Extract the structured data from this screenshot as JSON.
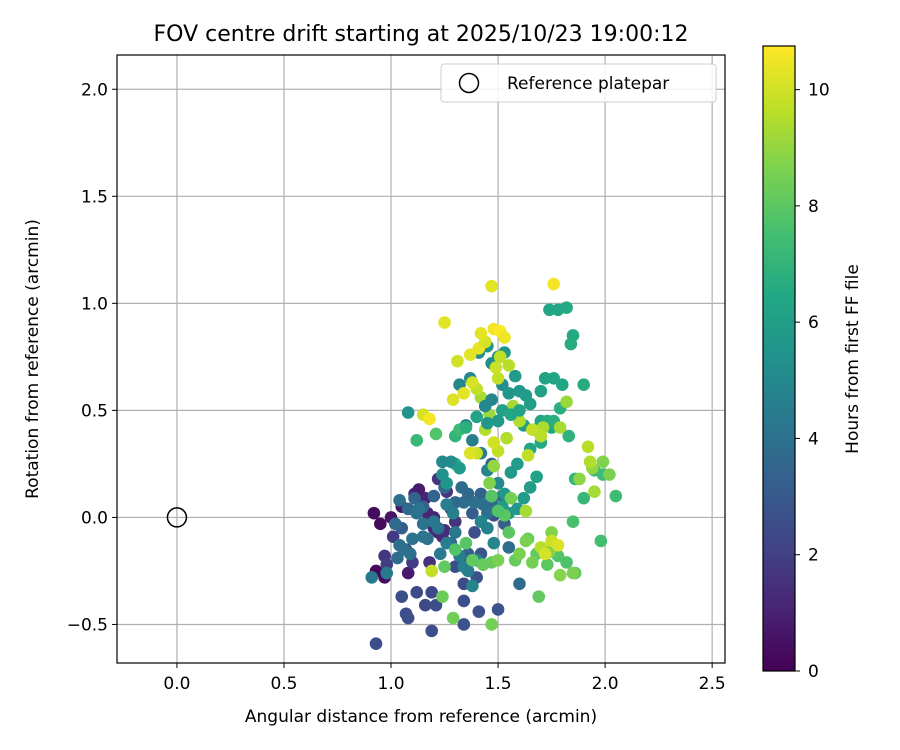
{
  "chart_data": {
    "type": "scatter",
    "title": "FOV centre drift starting at 2025/10/23 19:00:12",
    "xlabel": "Angular distance from reference (arcmin)",
    "ylabel": "Rotation from reference (arcmin)",
    "xlim": [
      -0.28,
      2.56
    ],
    "ylim": [
      -0.68,
      2.16
    ],
    "xticks": [
      0.0,
      0.5,
      1.0,
      1.5,
      2.0,
      2.5
    ],
    "xtick_labels": [
      "0.0",
      "0.5",
      "1.0",
      "1.5",
      "2.0",
      "2.5"
    ],
    "yticks": [
      -0.5,
      0.0,
      0.5,
      1.0,
      1.5,
      2.0
    ],
    "ytick_labels": [
      "−0.5",
      "0.0",
      "0.5",
      "1.0",
      "1.5",
      "2.0"
    ],
    "grid": true,
    "legend": {
      "placement": "top-right",
      "label": "Reference platepar"
    },
    "reference_point": {
      "x": 0.0,
      "y": 0.0
    },
    "colorbar": {
      "label": "Hours from first FF file",
      "colormap": "viridis",
      "min": 0,
      "max": 10.75,
      "ticks": [
        0,
        2,
        4,
        6,
        8,
        10
      ],
      "tick_labels": [
        "0",
        "2",
        "4",
        "6",
        "8",
        "10"
      ]
    },
    "points": [
      [
        0.92,
        0.02,
        0.3
      ],
      [
        0.95,
        -0.03,
        0.3
      ],
      [
        0.97,
        -0.28,
        0.3
      ],
      [
        0.93,
        -0.25,
        0.2
      ],
      [
        1.0,
        0.0,
        0.6
      ],
      [
        1.05,
        0.05,
        0.7
      ],
      [
        1.08,
        -0.26,
        0.8
      ],
      [
        1.11,
        0.11,
        1.0
      ],
      [
        1.13,
        0.13,
        0.8
      ],
      [
        1.16,
        0.09,
        1.0
      ],
      [
        1.2,
        0.0,
        1.0
      ],
      [
        1.22,
        -0.07,
        1.0
      ],
      [
        1.24,
        -0.09,
        1.3
      ],
      [
        1.25,
        -0.06,
        1.4
      ],
      [
        1.26,
        0.12,
        1.6
      ],
      [
        1.28,
        0.04,
        1.4
      ],
      [
        1.2,
        -0.05,
        1.2
      ],
      [
        1.17,
        0.02,
        1.1
      ],
      [
        1.3,
        -0.02,
        1.6
      ],
      [
        1.35,
        -0.2,
        1.8
      ],
      [
        1.22,
        0.18,
        1.7
      ],
      [
        1.18,
        -0.21,
        1.5
      ],
      [
        0.97,
        -0.18,
        1.6
      ],
      [
        1.01,
        -0.09,
        1.8
      ],
      [
        1.07,
        -0.15,
        2.0
      ],
      [
        1.1,
        -0.21,
        1.9
      ],
      [
        0.98,
        -0.22,
        1.9
      ],
      [
        0.93,
        -0.59,
        2.5
      ],
      [
        1.05,
        -0.37,
        2.5
      ],
      [
        1.12,
        -0.35,
        2.4
      ],
      [
        1.19,
        -0.35,
        2.3
      ],
      [
        1.07,
        -0.45,
        2.6
      ],
      [
        1.08,
        -0.47,
        2.6
      ],
      [
        1.16,
        -0.41,
        2.4
      ],
      [
        1.21,
        -0.41,
        2.5
      ],
      [
        1.19,
        -0.53,
        2.6
      ],
      [
        1.3,
        -0.23,
        2.5
      ],
      [
        1.34,
        -0.31,
        2.4
      ],
      [
        1.34,
        -0.39,
        2.6
      ],
      [
        1.34,
        -0.5,
        2.7
      ],
      [
        1.4,
        -0.28,
        2.8
      ],
      [
        1.41,
        -0.44,
        2.7
      ],
      [
        1.5,
        -0.43,
        2.8
      ],
      [
        1.43,
        -0.22,
        2.7
      ],
      [
        1.48,
        0.01,
        2.6
      ],
      [
        1.39,
        -0.07,
        2.6
      ],
      [
        1.42,
        -0.17,
        2.9
      ],
      [
        1.53,
        -0.03,
        3.2
      ],
      [
        1.38,
        0.02,
        3.2
      ],
      [
        1.42,
        0.11,
        3.4
      ],
      [
        1.47,
        0.25,
        3.4
      ],
      [
        1.52,
        0.1,
        3.6
      ],
      [
        1.6,
        -0.31,
        3.7
      ],
      [
        1.55,
        -0.14,
        3.8
      ],
      [
        1.36,
        -0.17,
        3.3
      ],
      [
        1.28,
        -0.12,
        3.6
      ],
      [
        1.3,
        0.07,
        3.6
      ],
      [
        1.33,
        0.14,
        3.7
      ],
      [
        1.34,
        0.07,
        3.8
      ],
      [
        1.36,
        0.11,
        3.6
      ],
      [
        1.39,
        0.07,
        3.9
      ],
      [
        1.43,
        0.06,
        3.9
      ],
      [
        1.45,
        0.02,
        4.0
      ],
      [
        1.47,
        0.07,
        3.8
      ],
      [
        1.25,
        0.14,
        3.6
      ],
      [
        1.2,
        0.1,
        3.5
      ],
      [
        1.15,
        0.05,
        3.4
      ],
      [
        1.11,
        0.09,
        3.5
      ],
      [
        1.05,
        -0.05,
        3.2
      ],
      [
        1.02,
        -0.03,
        3.7
      ],
      [
        1.04,
        0.08,
        3.9
      ],
      [
        1.08,
        0.04,
        3.6
      ],
      [
        1.12,
        0.02,
        3.9
      ],
      [
        1.13,
        0.04,
        4.2
      ],
      [
        1.15,
        -0.03,
        4.1
      ],
      [
        1.17,
        -0.1,
        4.0
      ],
      [
        1.22,
        -0.05,
        4.1
      ],
      [
        1.23,
        -0.17,
        4.4
      ],
      [
        1.26,
        -0.12,
        4.5
      ],
      [
        1.3,
        -0.07,
        4.3
      ],
      [
        1.32,
        -0.18,
        4.5
      ],
      [
        1.34,
        -0.23,
        4.7
      ],
      [
        1.36,
        -0.25,
        4.6
      ],
      [
        1.38,
        -0.32,
        4.8
      ],
      [
        1.4,
        -0.2,
        4.9
      ],
      [
        1.42,
        -0.02,
        4.8
      ],
      [
        1.45,
        -0.05,
        4.7
      ],
      [
        1.48,
        -0.12,
        4.9
      ],
      [
        1.5,
        0.16,
        5.0
      ],
      [
        1.45,
        0.22,
        4.8
      ],
      [
        1.42,
        0.3,
        4.6
      ],
      [
        1.38,
        0.36,
        4.6
      ],
      [
        1.35,
        0.43,
        4.8
      ],
      [
        1.32,
        0.62,
        5.0
      ],
      [
        1.37,
        0.65,
        5.1
      ],
      [
        1.41,
        0.77,
        5.2
      ],
      [
        1.47,
        0.72,
        5.3
      ],
      [
        1.45,
        0.8,
        5.5
      ],
      [
        1.5,
        0.75,
        5.4
      ],
      [
        1.53,
        0.77,
        5.6
      ],
      [
        1.52,
        0.62,
        5.3
      ],
      [
        1.55,
        0.58,
        5.6
      ],
      [
        1.58,
        0.66,
        5.8
      ],
      [
        1.6,
        0.59,
        5.7
      ],
      [
        1.63,
        0.57,
        5.9
      ],
      [
        1.65,
        0.53,
        6.0
      ],
      [
        1.7,
        0.59,
        6.1
      ],
      [
        1.72,
        0.65,
        6.2
      ],
      [
        1.76,
        0.65,
        6.3
      ],
      [
        1.8,
        0.62,
        6.4
      ],
      [
        1.82,
        0.98,
        6.5
      ],
      [
        1.85,
        0.85,
        6.5
      ],
      [
        1.84,
        0.81,
        6.6
      ],
      [
        1.78,
        0.97,
        6.4
      ],
      [
        1.74,
        0.97,
        6.3
      ],
      [
        1.9,
        0.62,
        6.6
      ],
      [
        1.75,
        0.42,
        6.4
      ],
      [
        1.7,
        0.45,
        6.2
      ],
      [
        1.67,
        0.41,
        6.3
      ],
      [
        1.62,
        0.43,
        6.0
      ],
      [
        1.59,
        0.25,
        5.9
      ],
      [
        1.56,
        0.21,
        5.8
      ],
      [
        1.53,
        0.11,
        5.6
      ],
      [
        1.52,
        0.05,
        5.8
      ],
      [
        1.55,
        0.02,
        5.6
      ],
      [
        1.59,
        0.04,
        5.7
      ],
      [
        1.62,
        0.09,
        5.9
      ],
      [
        1.65,
        0.14,
        6.0
      ],
      [
        1.68,
        0.19,
        6.2
      ],
      [
        1.65,
        0.32,
        6.3
      ],
      [
        1.7,
        0.35,
        6.5
      ],
      [
        1.73,
        0.45,
        6.6
      ],
      [
        1.76,
        0.45,
        6.7
      ],
      [
        1.79,
        0.51,
        6.8
      ],
      [
        1.83,
        0.38,
        6.9
      ],
      [
        1.86,
        0.18,
        7.0
      ],
      [
        1.9,
        0.09,
        7.1
      ],
      [
        1.95,
        0.22,
        7.2
      ],
      [
        1.99,
        0.2,
        7.3
      ],
      [
        2.05,
        0.1,
        7.4
      ],
      [
        1.98,
        -0.11,
        7.5
      ],
      [
        1.85,
        -0.02,
        7.6
      ],
      [
        1.82,
        -0.21,
        7.7
      ],
      [
        1.78,
        -0.18,
        7.8
      ],
      [
        1.86,
        -0.26,
        7.9
      ],
      [
        1.73,
        -0.22,
        8.0
      ],
      [
        1.69,
        -0.37,
        8.1
      ],
      [
        1.68,
        -0.17,
        8.1
      ],
      [
        1.64,
        -0.1,
        8.2
      ],
      [
        1.58,
        -0.2,
        8.2
      ],
      [
        1.55,
        -0.07,
        8.0
      ],
      [
        1.53,
        0.01,
        8.0
      ],
      [
        1.5,
        0.03,
        7.8
      ],
      [
        1.47,
        0.1,
        7.9
      ],
      [
        1.47,
        -0.21,
        8.2
      ],
      [
        1.43,
        -0.22,
        8.2
      ],
      [
        1.38,
        -0.2,
        8.1
      ],
      [
        1.35,
        -0.12,
        7.9
      ],
      [
        1.3,
        -0.15,
        7.8
      ],
      [
        1.25,
        -0.23,
        8.1
      ],
      [
        1.24,
        -0.37,
        8.3
      ],
      [
        1.29,
        -0.47,
        8.4
      ],
      [
        1.47,
        -0.5,
        8.5
      ],
      [
        1.5,
        -0.2,
        8.6
      ],
      [
        1.6,
        -0.17,
        8.6
      ],
      [
        1.63,
        -0.11,
        8.6
      ],
      [
        1.66,
        -0.21,
        8.5
      ],
      [
        1.74,
        -0.16,
        8.7
      ],
      [
        1.75,
        -0.07,
        8.7
      ],
      [
        1.79,
        -0.27,
        8.8
      ],
      [
        1.85,
        -0.26,
        8.6
      ],
      [
        1.88,
        0.18,
        8.9
      ],
      [
        1.94,
        0.23,
        9.0
      ],
      [
        1.99,
        0.26,
        8.7
      ],
      [
        2.02,
        0.2,
        8.6
      ],
      [
        1.95,
        0.12,
        9.3
      ],
      [
        1.93,
        0.26,
        9.5
      ],
      [
        1.92,
        0.33,
        9.6
      ],
      [
        1.79,
        0.42,
        9.3
      ],
      [
        1.82,
        0.54,
        9.1
      ],
      [
        1.71,
        0.42,
        9.4
      ],
      [
        1.7,
        0.38,
        9.6
      ],
      [
        1.66,
        0.41,
        9.8
      ],
      [
        1.64,
        0.29,
        9.7
      ],
      [
        1.6,
        0.45,
        9.5
      ],
      [
        1.57,
        0.52,
        9.3
      ],
      [
        1.54,
        0.37,
        9.5
      ],
      [
        1.5,
        0.31,
        9.8
      ],
      [
        1.48,
        0.35,
        10.0
      ],
      [
        1.44,
        0.41,
        9.5
      ],
      [
        1.4,
        0.3,
        9.9
      ],
      [
        1.37,
        0.3,
        10.2
      ],
      [
        1.46,
        0.48,
        9.2
      ],
      [
        1.42,
        0.56,
        9.3
      ],
      [
        1.4,
        0.6,
        9.8
      ],
      [
        1.38,
        0.63,
        10.1
      ],
      [
        1.34,
        0.58,
        10.3
      ],
      [
        1.29,
        0.55,
        10.2
      ],
      [
        1.31,
        0.73,
        10.0
      ],
      [
        1.37,
        0.76,
        10.3
      ],
      [
        1.41,
        0.79,
        10.4
      ],
      [
        1.44,
        0.82,
        10.1
      ],
      [
        1.48,
        0.88,
        10.6
      ],
      [
        1.51,
        0.87,
        10.7
      ],
      [
        1.53,
        0.84,
        10.5
      ],
      [
        1.42,
        0.86,
        10.3
      ],
      [
        1.25,
        0.91,
        10.3
      ],
      [
        1.47,
        1.08,
        10.3
      ],
      [
        1.76,
        1.09,
        10.6
      ],
      [
        1.49,
        0.7,
        9.9
      ],
      [
        1.51,
        0.75,
        9.7
      ],
      [
        1.5,
        0.65,
        9.8
      ],
      [
        1.55,
        0.71,
        9.6
      ],
      [
        1.48,
        0.24,
        9.0
      ],
      [
        1.46,
        0.16,
        8.7
      ],
      [
        1.56,
        0.09,
        8.5
      ],
      [
        1.63,
        0.03,
        9.3
      ],
      [
        1.7,
        -0.14,
        9.6
      ],
      [
        1.75,
        -0.11,
        9.9
      ],
      [
        1.78,
        -0.13,
        10.2
      ],
      [
        1.72,
        -0.17,
        10.1
      ],
      [
        1.19,
        -0.25,
        9.8
      ],
      [
        1.15,
        0.48,
        10.1
      ],
      [
        1.18,
        0.46,
        10.6
      ],
      [
        1.21,
        0.39,
        7.8
      ],
      [
        1.12,
        0.36,
        7.2
      ],
      [
        1.08,
        0.49,
        5.5
      ],
      [
        1.3,
        0.38,
        7.0
      ],
      [
        1.32,
        0.41,
        7.3
      ],
      [
        1.35,
        0.42,
        6.8
      ],
      [
        1.4,
        0.47,
        6.2
      ],
      [
        1.45,
        0.44,
        5.6
      ],
      [
        1.5,
        0.45,
        5.7
      ],
      [
        1.52,
        0.5,
        6.1
      ],
      [
        1.56,
        0.48,
        6.4
      ],
      [
        1.6,
        0.5,
        6.2
      ],
      [
        1.47,
        0.55,
        4.9
      ],
      [
        1.44,
        0.52,
        5.0
      ],
      [
        1.3,
        0.25,
        6.7
      ],
      [
        1.28,
        0.26,
        5.2
      ],
      [
        1.24,
        0.26,
        5.0
      ],
      [
        1.24,
        0.2,
        5.4
      ],
      [
        1.26,
        0.16,
        5.6
      ],
      [
        1.32,
        0.23,
        5.8
      ],
      [
        1.29,
        0.02,
        4.7
      ],
      [
        1.26,
        0.06,
        4.5
      ],
      [
        1.2,
        -0.02,
        4.3
      ],
      [
        1.15,
        -0.09,
        4.2
      ],
      [
        1.1,
        -0.1,
        4.1
      ],
      [
        1.06,
        -0.15,
        4.0
      ],
      [
        1.03,
        -0.19,
        3.8
      ],
      [
        0.98,
        -0.26,
        4.4
      ],
      [
        0.91,
        -0.28,
        4.3
      ],
      [
        1.04,
        -0.13,
        3.9
      ],
      [
        1.09,
        -0.17,
        3.9
      ]
    ]
  }
}
